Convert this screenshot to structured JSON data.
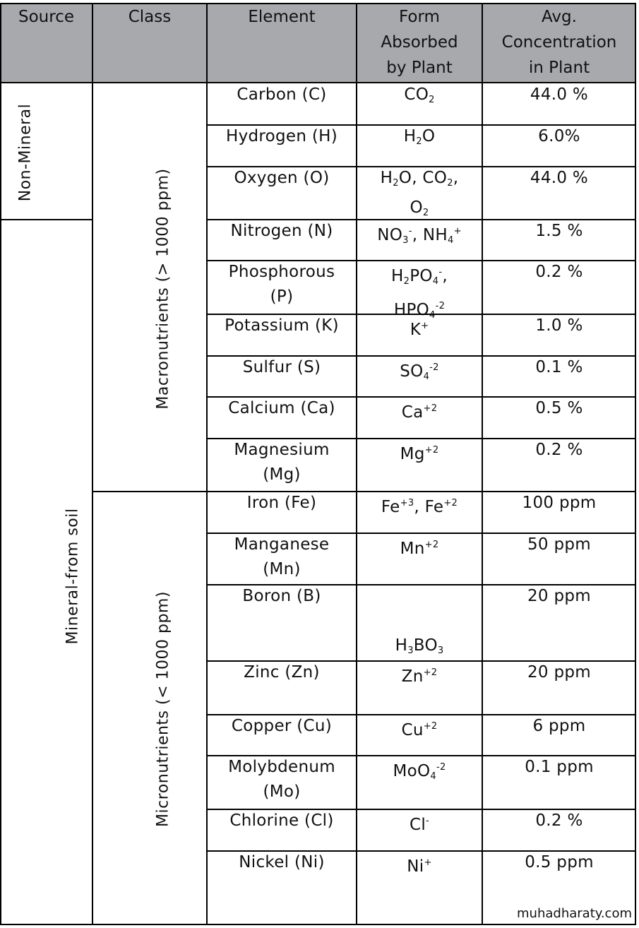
{
  "header": {
    "source": "Source",
    "class": "Class",
    "element": "Element",
    "form": [
      "Form",
      "Absorbed",
      "by Plant"
    ],
    "concentration": [
      "Avg.",
      "Concentration",
      "in Plant"
    ]
  },
  "sources": {
    "non_mineral": "Non-Mineral",
    "mineral": "Mineral-from soil"
  },
  "classes": {
    "macro": "Macronutrients (> 1000 ppm)",
    "micro": "Micronutrients (< 1000 ppm)"
  },
  "rows": [
    {
      "element": [
        "Carbon (C)"
      ],
      "form_html": "CO<sub>2</sub>",
      "conc": "44.0 %"
    },
    {
      "element": [
        "Hydrogen (H)"
      ],
      "form_html": "H<sub>2</sub>O",
      "conc": "6.0%"
    },
    {
      "element": [
        "Oxygen (O)"
      ],
      "form_html": "H<sub>2</sub>O, CO<sub>2</sub>,<br>O<sub>2</sub>",
      "conc": "44.0 %"
    },
    {
      "element": [
        "Nitrogen (N)"
      ],
      "form_html": "NO<sub>3</sub><sup>-</sup>, NH<sub>4</sub><sup>+</sup>",
      "conc": "1.5 %"
    },
    {
      "element": [
        "Phosphorous",
        "(P)"
      ],
      "form_html": "H<sub>2</sub>PO<sub>4</sub><sup>-</sup>,<br>HPO<sub>4</sub><sup>-2</sup>",
      "conc": "0.2 %"
    },
    {
      "element": [
        "Potassium (K)"
      ],
      "form_html": "K<sup>+</sup>",
      "conc": "1.0 %"
    },
    {
      "element": [
        "Sulfur (S)"
      ],
      "form_html": "SO<sub>4</sub><sup>-2</sup>",
      "conc": "0.1 %"
    },
    {
      "element": [
        "Calcium (Ca)"
      ],
      "form_html": "Ca<sup>+2</sup>",
      "conc": "0.5 %"
    },
    {
      "element": [
        "Magnesium",
        "(Mg)"
      ],
      "form_html": "Mg<sup>+2</sup>",
      "conc": "0.2 %"
    },
    {
      "element": [
        "Iron (Fe)"
      ],
      "form_html": "Fe<sup>+3</sup>, Fe<sup>+2</sup>",
      "conc": "100 ppm"
    },
    {
      "element": [
        "Manganese",
        "(Mn)"
      ],
      "form_html": "Mn<sup>+2</sup>",
      "conc": "50 ppm"
    },
    {
      "element": [
        "Boron (B)"
      ],
      "form_html": "<br><br>H<sub>3</sub>BO<sub>3</sub>",
      "conc": "20 ppm"
    },
    {
      "element": [
        "Zinc (Zn)"
      ],
      "form_html": "Zn<sup>+2</sup>",
      "conc": "20 ppm"
    },
    {
      "element": [
        "Copper (Cu)"
      ],
      "form_html": "Cu<sup>+2</sup>",
      "conc": "6 ppm"
    },
    {
      "element": [
        "Molybdenum",
        "(Mo)"
      ],
      "form_html": "MoO<sub>4</sub><sup>-2</sup>",
      "conc": "0.1 ppm"
    },
    {
      "element": [
        "Chlorine (Cl)"
      ],
      "form_html": "Cl<sup>-</sup>",
      "conc": "0.2 %"
    },
    {
      "element": [
        "Nickel (Ni)"
      ],
      "form_html": "Ni<sup>+</sup>",
      "conc": "0.5 ppm"
    }
  ],
  "footer": "muhadharaty.com"
}
